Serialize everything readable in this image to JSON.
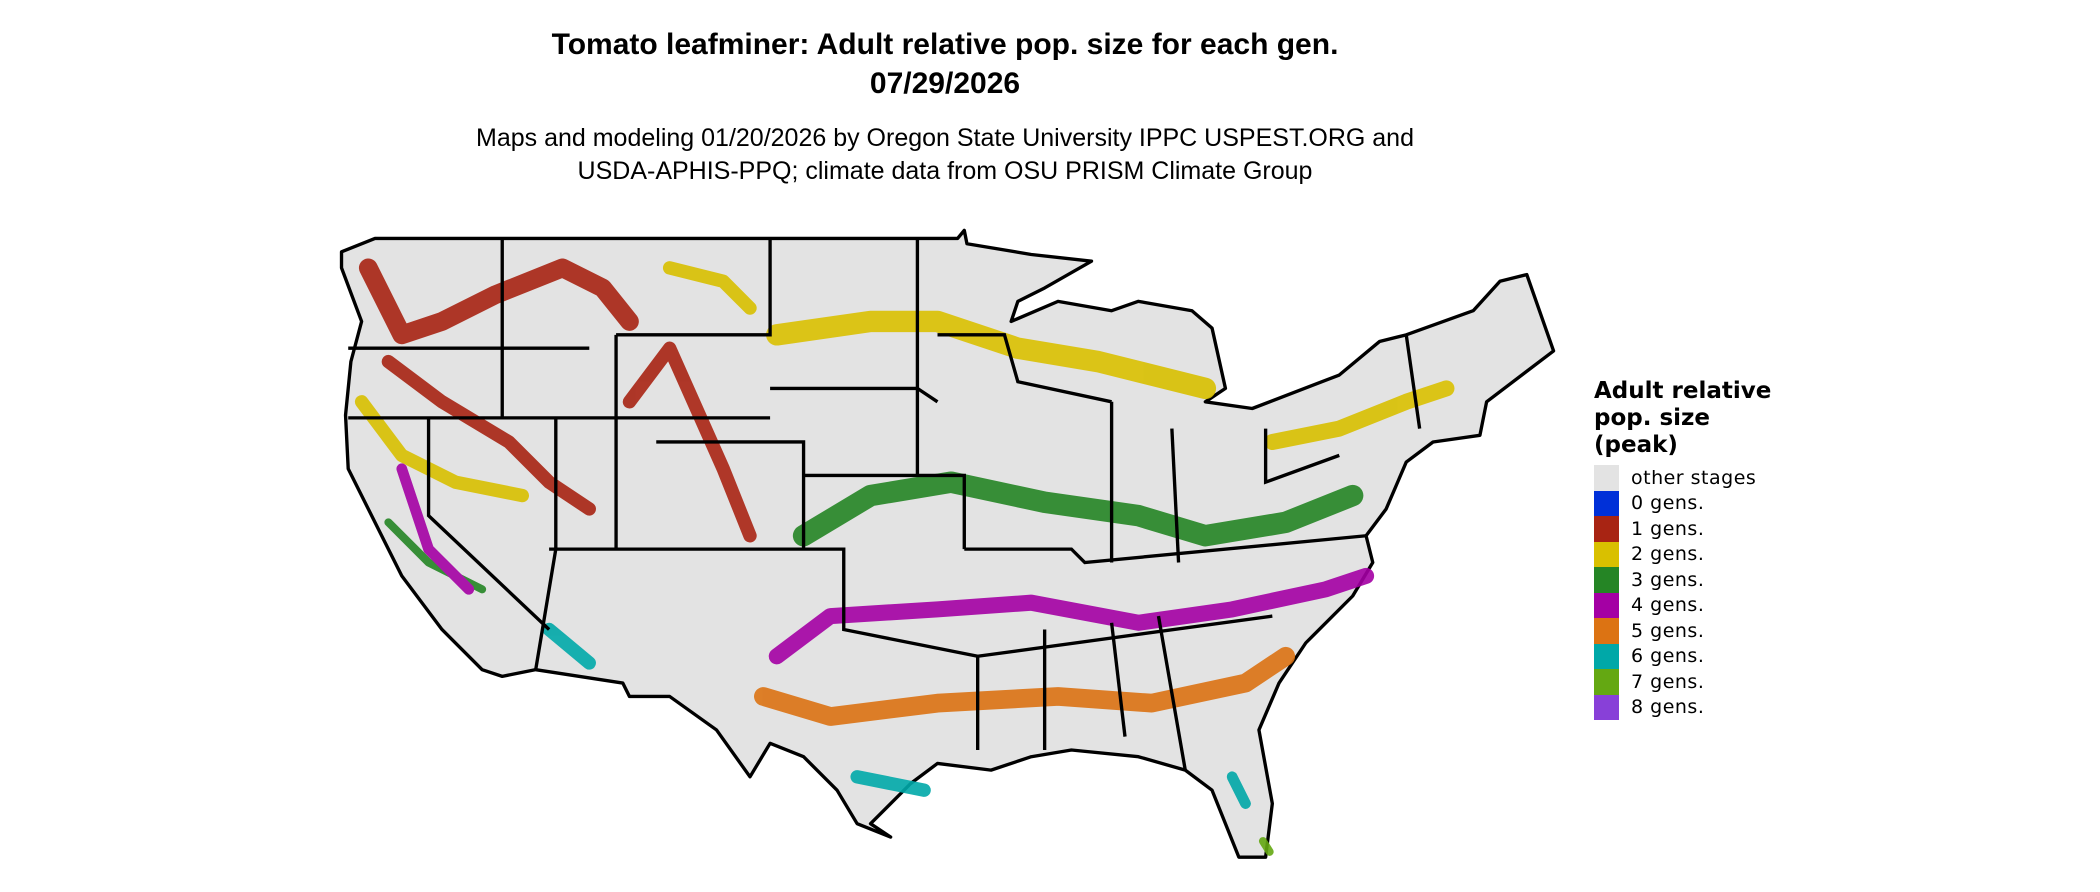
{
  "header": {
    "title": "Tomato leafminer: Adult relative pop. size for each gen.",
    "date": "07/29/2026",
    "subtitle_line1": "Maps and modeling 01/20/2026 by Oregon State University IPPC USPEST.ORG and",
    "subtitle_line2": "USDA-APHIS-PPQ; climate data from OSU PRISM Climate Group"
  },
  "legend": {
    "title_line1": "Adult relative",
    "title_line2": "pop. size",
    "title_line3": "(peak)",
    "items": [
      {
        "label": "other stages",
        "color": "#e3e3e3"
      },
      {
        "label": "0 gens.",
        "color": "#0030d8"
      },
      {
        "label": "1 gens.",
        "color": "#a82413"
      },
      {
        "label": "2 gens.",
        "color": "#d9c000"
      },
      {
        "label": "3 gens.",
        "color": "#258525"
      },
      {
        "label": "4 gens.",
        "color": "#a400a4"
      },
      {
        "label": "5 gens.",
        "color": "#dc7313"
      },
      {
        "label": "6 gens.",
        "color": "#00a8a8"
      },
      {
        "label": "7 gens.",
        "color": "#64a812"
      },
      {
        "label": "8 gens.",
        "color": "#8840d8"
      }
    ]
  }
}
